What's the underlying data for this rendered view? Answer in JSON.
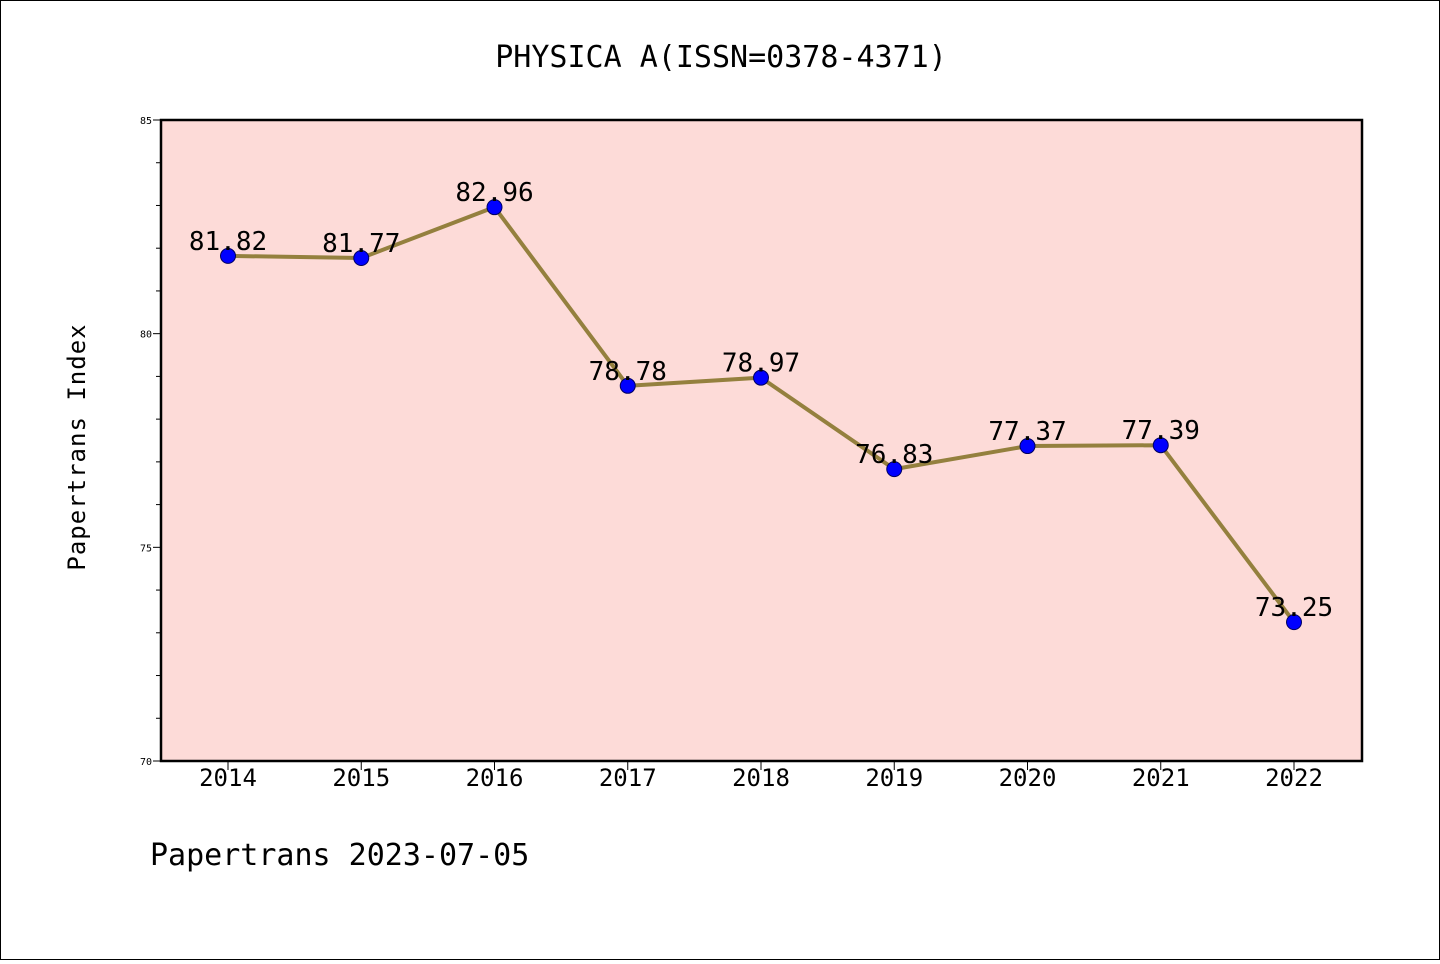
{
  "colors": {
    "plot_background": "#fddbd8",
    "line": "#94803e",
    "marker": "#0000ff",
    "axis": "#000000"
  },
  "footer": "Papertrans 2023-07-05",
  "chart_data": {
    "type": "line",
    "title": "PHYSICA A(ISSN=0378-4371)",
    "xlabel": "",
    "ylabel": "Papertrans Index",
    "categories": [
      "2014",
      "2015",
      "2016",
      "2017",
      "2018",
      "2019",
      "2020",
      "2021",
      "2022"
    ],
    "series": [
      {
        "values": [
          81.82,
          81.77,
          82.96,
          78.78,
          78.97,
          76.83,
          77.37,
          77.39,
          73.25
        ],
        "labels": [
          "81.82",
          "81.77",
          "82.96",
          "78.78",
          "78.97",
          "76.83",
          "77.37",
          "77.39",
          "73.25"
        ]
      }
    ],
    "ylim": [
      70,
      85
    ],
    "yticks": [
      70,
      75,
      80,
      85
    ],
    "yticks_labels": [
      "70",
      "75",
      "80",
      "85"
    ],
    "y_minor_step": 1,
    "grid": false,
    "legend": "none"
  }
}
